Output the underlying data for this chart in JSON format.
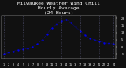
{
  "title": "Milwaukee Weather Wind Chill\nHourly Average\n(24 Hours)",
  "title_fontsize": 4.5,
  "bg_color": "#111111",
  "plot_bg_color": "#111111",
  "text_color": "#ffffff",
  "grid_color": "#555577",
  "line_color": "#0000ff",
  "marker_color": "#0000ff",
  "hours": [
    1,
    2,
    3,
    4,
    5,
    6,
    7,
    8,
    9,
    10,
    11,
    12,
    13,
    14,
    15,
    16,
    17,
    18,
    19,
    20,
    21,
    22,
    23,
    24
  ],
  "values": [
    -5,
    -4,
    -3,
    -2,
    -1.5,
    -1,
    0,
    2,
    5,
    9,
    13,
    16,
    18,
    19,
    17,
    14,
    11,
    8,
    6,
    5,
    4,
    3,
    2.5,
    2
  ],
  "ylim": [
    -8,
    22
  ],
  "yticks": [
    -5,
    0,
    5,
    10,
    15,
    20
  ],
  "grid_positions": [
    1,
    5,
    9,
    13,
    17,
    21,
    24
  ]
}
